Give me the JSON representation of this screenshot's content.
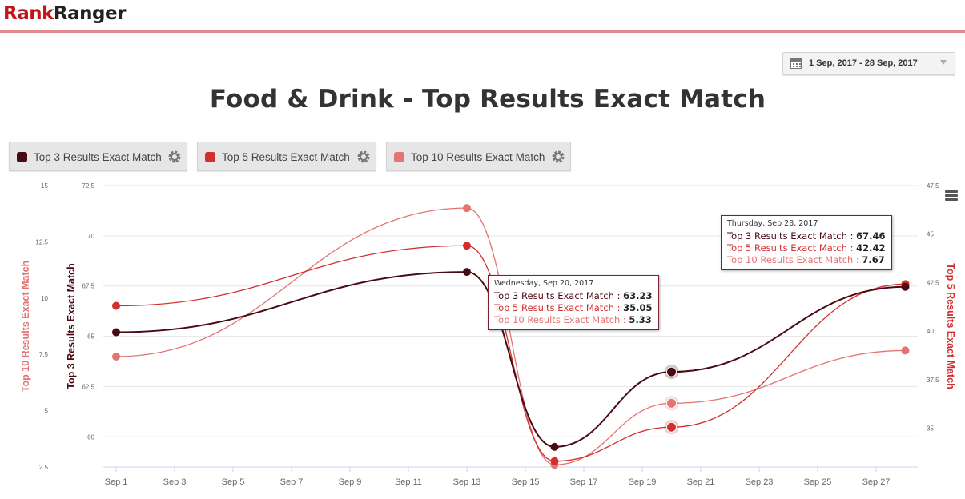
{
  "header": {
    "logo_part1": "Rank",
    "logo_part2": "Ranger"
  },
  "date_range": {
    "label": "1 Sep, 2017 - 28 Sep, 2017"
  },
  "legend": [
    {
      "label": "Top 3 Results Exact Match",
      "color": "#4a0a14"
    },
    {
      "label": "Top 5 Results Exact Match",
      "color": "#d32f2f"
    },
    {
      "label": "Top 10 Results Exact Match",
      "color": "#e57373"
    }
  ],
  "tooltips": [
    {
      "header": "Wednesday, Sep 20, 2017",
      "rows": [
        {
          "name": "Top 3 Results Exact Match",
          "value": "63.23"
        },
        {
          "name": "Top 5 Results Exact Match",
          "value": "35.05"
        },
        {
          "name": "Top 10 Results Exact Match",
          "value": "5.33"
        }
      ]
    },
    {
      "header": "Thursday, Sep 28, 2017",
      "rows": [
        {
          "name": "Top 3 Results Exact Match",
          "value": "67.46"
        },
        {
          "name": "Top 5 Results Exact Match",
          "value": "42.42"
        },
        {
          "name": "Top 10 Results Exact Match",
          "value": "7.67"
        }
      ]
    }
  ],
  "chart_data": {
    "type": "line",
    "title": "Food & Drink - Top Results Exact Match",
    "x": [
      "2017-09-01",
      "2017-09-13",
      "2017-09-16",
      "2017-09-20",
      "2017-09-28"
    ],
    "x_ticks": [
      "Sep 1",
      "Sep 3",
      "Sep 5",
      "Sep 7",
      "Sep 9",
      "Sep 11",
      "Sep 13",
      "Sep 15",
      "Sep 17",
      "Sep 19",
      "Sep 21",
      "Sep 23",
      "Sep 25",
      "Sep 27"
    ],
    "axes": {
      "left_outer": {
        "label": "Top 10 Results Exact Match",
        "range": [
          2.5,
          15
        ],
        "ticks": [
          "15",
          "12.5",
          "10",
          "7.5",
          "5",
          "2.5"
        ],
        "color": "#e57373"
      },
      "left_inner": {
        "label": "Top 3 Results Exact Match",
        "range": [
          58.5,
          72.5
        ],
        "ticks": [
          "72.5",
          "70",
          "67.5",
          "65",
          "62.5",
          "60"
        ],
        "color": "#4a0a14"
      },
      "right": {
        "label": "Top 5 Results Exact Match",
        "range": [
          33,
          47.5
        ],
        "ticks": [
          "47.5",
          "45",
          "42.5",
          "40",
          "37.5",
          "35"
        ],
        "color": "#d32f2f"
      }
    },
    "grid": true,
    "series": [
      {
        "name": "Top 3 Results Exact Match",
        "axis": "left_inner",
        "color": "#4a0a14",
        "values": [
          65.2,
          68.2,
          59.5,
          63.23,
          67.46
        ]
      },
      {
        "name": "Top 5 Results Exact Match",
        "axis": "right",
        "color": "#d32f2f",
        "values": [
          41.3,
          44.4,
          33.3,
          35.05,
          42.42
        ]
      },
      {
        "name": "Top 10 Results Exact Match",
        "axis": "left_outer",
        "color": "#e57373",
        "values": [
          7.4,
          14.0,
          2.6,
          5.33,
          7.67
        ]
      }
    ]
  }
}
